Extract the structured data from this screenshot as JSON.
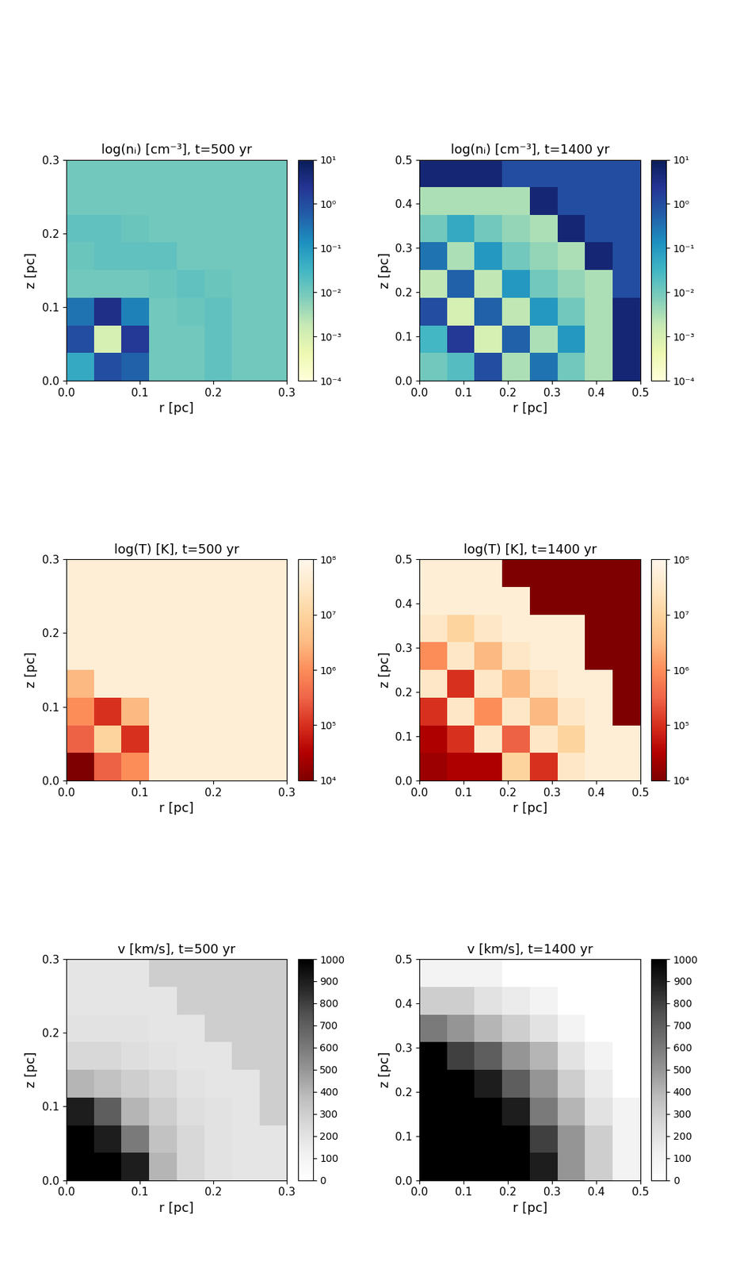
{
  "chart_data": [
    {
      "type": "heatmap",
      "title": "log(nᵢ) [cm⁻³], t=500 yr",
      "x_label": "r [pc]",
      "y_label": "z [pc]",
      "xlim": [
        0.0,
        0.3
      ],
      "ylim": [
        0.0,
        0.3
      ],
      "xticks": [
        0.0,
        0.1,
        0.2,
        0.3
      ],
      "yticks": [
        0.0,
        0.1,
        0.2,
        0.3
      ],
      "color": "YlGnBu",
      "cells": [
        [
          0.05,
          1.0,
          0.5,
          0.01,
          0.01,
          0.015,
          0.01,
          0.01
        ],
        [
          1.0,
          0.001,
          2.0,
          0.01,
          0.01,
          0.015,
          0.01,
          0.01
        ],
        [
          0.3,
          3.0,
          0.2,
          0.01,
          0.012,
          0.015,
          0.01,
          0.01
        ],
        [
          0.01,
          0.01,
          0.01,
          0.012,
          0.015,
          0.012,
          0.01,
          0.01
        ],
        [
          0.012,
          0.015,
          0.015,
          0.015,
          0.01,
          0.01,
          0.01,
          0.01
        ],
        [
          0.015,
          0.015,
          0.012,
          0.01,
          0.01,
          0.01,
          0.01,
          0.01
        ],
        [
          0.01,
          0.01,
          0.01,
          0.01,
          0.01,
          0.01,
          0.01,
          0.01
        ],
        [
          0.01,
          0.01,
          0.01,
          0.01,
          0.01,
          0.01,
          0.01,
          0.01
        ]
      ],
      "colorbar": {
        "log": true,
        "range": [
          0.0001,
          10
        ],
        "ticks": [
          {
            "value": 10,
            "label": "10¹"
          },
          {
            "value": 1,
            "label": "10⁰"
          },
          {
            "value": 0.1,
            "label": "10⁻¹"
          },
          {
            "value": 0.01,
            "label": "10⁻²"
          },
          {
            "value": 0.001,
            "label": "10⁻³"
          },
          {
            "value": 0.0001,
            "label": "10⁻⁴"
          }
        ]
      }
    },
    {
      "type": "heatmap",
      "title": "log(nᵢ) [cm⁻³], t=1400 yr",
      "x_label": "r [pc]",
      "y_label": "z [pc]",
      "xlim": [
        0.0,
        0.5
      ],
      "ylim": [
        0.0,
        0.5
      ],
      "xticks": [
        0.0,
        0.1,
        0.2,
        0.3,
        0.4,
        0.5
      ],
      "yticks": [
        0.0,
        0.1,
        0.2,
        0.3,
        0.4,
        0.5
      ],
      "color": "YlGnBu",
      "cells": [
        [
          0.01,
          0.02,
          1.0,
          0.003,
          0.3,
          0.01,
          0.003,
          5.0
        ],
        [
          0.03,
          2.0,
          0.001,
          0.5,
          0.003,
          0.1,
          0.003,
          5.0
        ],
        [
          1.0,
          0.001,
          0.5,
          0.002,
          0.1,
          0.01,
          0.003,
          5.0
        ],
        [
          0.002,
          0.5,
          0.002,
          0.1,
          0.01,
          0.005,
          0.003,
          1.0
        ],
        [
          0.3,
          0.003,
          0.1,
          0.01,
          0.005,
          0.003,
          5.0,
          1.0
        ],
        [
          0.01,
          0.05,
          0.01,
          0.005,
          0.003,
          5.0,
          1.0,
          1.0
        ],
        [
          0.003,
          0.003,
          0.003,
          0.003,
          5.0,
          1.0,
          1.0,
          1.0
        ],
        [
          5.0,
          5.0,
          5.0,
          1.0,
          1.0,
          1.0,
          1.0,
          1.0
        ]
      ],
      "colorbar": {
        "log": true,
        "range": [
          0.0001,
          10
        ],
        "ticks": [
          {
            "value": 10,
            "label": "10¹"
          },
          {
            "value": 1,
            "label": "10⁰"
          },
          {
            "value": 0.1,
            "label": "10⁻¹"
          },
          {
            "value": 0.01,
            "label": "10⁻²"
          },
          {
            "value": 0.001,
            "label": "10⁻³"
          },
          {
            "value": 0.0001,
            "label": "10⁻⁴"
          }
        ]
      }
    },
    {
      "type": "heatmap",
      "title": "log(T) [K], t=500 yr",
      "x_label": "r [pc]",
      "y_label": "z [pc]",
      "xlim": [
        0.0,
        0.3
      ],
      "ylim": [
        0.0,
        0.3
      ],
      "xticks": [
        0.0,
        0.1,
        0.2,
        0.3
      ],
      "yticks": [
        0.0,
        0.1,
        0.2,
        0.3
      ],
      "color": "OrRd_r",
      "cells": [
        [
          10000,
          300000,
          1000000,
          50000000,
          50000000,
          50000000,
          50000000,
          50000000
        ],
        [
          300000,
          10000000,
          100000,
          50000000,
          50000000,
          50000000,
          50000000,
          50000000
        ],
        [
          1000000,
          100000,
          3000000,
          50000000,
          50000000,
          50000000,
          50000000,
          50000000
        ],
        [
          3000000,
          50000000,
          50000000,
          50000000,
          50000000,
          50000000,
          50000000,
          50000000
        ],
        [
          50000000,
          50000000,
          50000000,
          50000000,
          50000000,
          50000000,
          50000000,
          50000000
        ],
        [
          50000000,
          50000000,
          50000000,
          50000000,
          50000000,
          50000000,
          50000000,
          50000000
        ],
        [
          50000000,
          50000000,
          50000000,
          50000000,
          50000000,
          50000000,
          50000000,
          50000000
        ],
        [
          50000000,
          50000000,
          50000000,
          50000000,
          50000000,
          50000000,
          50000000,
          50000000
        ]
      ],
      "colorbar": {
        "log": true,
        "range": [
          10000,
          100000000
        ],
        "ticks": [
          {
            "value": 100000000,
            "label": "10⁸"
          },
          {
            "value": 10000000,
            "label": "10⁷"
          },
          {
            "value": 1000000,
            "label": "10⁶"
          },
          {
            "value": 100000,
            "label": "10⁵"
          },
          {
            "value": 10000,
            "label": "10⁴"
          }
        ]
      }
    },
    {
      "type": "heatmap",
      "title": "log(T) [K], t=1400 yr",
      "x_label": "r [pc]",
      "y_label": "z [pc]",
      "xlim": [
        0.0,
        0.5
      ],
      "ylim": [
        0.0,
        0.5
      ],
      "xticks": [
        0.0,
        0.1,
        0.2,
        0.3,
        0.4,
        0.5
      ],
      "yticks": [
        0.0,
        0.1,
        0.2,
        0.3,
        0.4,
        0.5
      ],
      "color": "OrRd_r",
      "cells": [
        [
          20000,
          30000,
          30000,
          10000000,
          100000,
          30000000,
          50000000,
          50000000
        ],
        [
          30000,
          100000,
          30000000,
          300000,
          30000000,
          10000000,
          50000000,
          50000000
        ],
        [
          100000,
          30000000,
          1000000,
          30000000,
          3000000,
          30000000,
          50000000,
          10000
        ],
        [
          30000000,
          100000,
          30000000,
          3000000,
          30000000,
          50000000,
          50000000,
          10000
        ],
        [
          1000000,
          30000000,
          3000000,
          30000000,
          50000000,
          50000000,
          10000,
          10000
        ],
        [
          30000000,
          10000000,
          30000000,
          50000000,
          50000000,
          50000000,
          10000,
          10000
        ],
        [
          50000000,
          50000000,
          50000000,
          50000000,
          10000,
          10000,
          10000,
          10000
        ],
        [
          50000000,
          50000000,
          50000000,
          10000,
          10000,
          10000,
          10000,
          10000
        ]
      ],
      "colorbar": {
        "log": true,
        "range": [
          10000,
          100000000
        ],
        "ticks": [
          {
            "value": 100000000,
            "label": "10⁸"
          },
          {
            "value": 10000000,
            "label": "10⁷"
          },
          {
            "value": 1000000,
            "label": "10⁶"
          },
          {
            "value": 100000,
            "label": "10⁵"
          },
          {
            "value": 10000,
            "label": "10⁴"
          }
        ]
      }
    },
    {
      "type": "heatmap",
      "title": "v [km/s], t=500 yr",
      "x_label": "r [pc]",
      "y_label": "z [pc]",
      "xlim": [
        0.0,
        0.3
      ],
      "ylim": [
        0.0,
        0.3
      ],
      "xticks": [
        0.0,
        0.1,
        0.2,
        0.3
      ],
      "yticks": [
        0.0,
        0.1,
        0.2,
        0.3
      ],
      "color": "Greys",
      "cells": [
        [
          1000,
          1000,
          900,
          400,
          250,
          200,
          180,
          180
        ],
        [
          1000,
          900,
          600,
          350,
          250,
          200,
          180,
          180
        ],
        [
          900,
          700,
          400,
          300,
          220,
          200,
          180,
          300
        ],
        [
          400,
          350,
          300,
          250,
          200,
          180,
          180,
          300
        ],
        [
          250,
          250,
          220,
          200,
          180,
          180,
          300,
          300
        ],
        [
          200,
          200,
          200,
          180,
          180,
          300,
          300,
          300
        ],
        [
          180,
          180,
          180,
          180,
          300,
          300,
          300,
          300
        ],
        [
          180,
          180,
          180,
          300,
          300,
          300,
          300,
          300
        ]
      ],
      "colorbar": {
        "log": false,
        "range": [
          0,
          1000
        ],
        "ticks": [
          0,
          100,
          200,
          300,
          400,
          500,
          600,
          700,
          800,
          900,
          1000
        ]
      }
    },
    {
      "type": "heatmap",
      "title": "v [km/s], t=1400 yr",
      "x_label": "r [pc]",
      "y_label": "z [pc]",
      "xlim": [
        0.0,
        0.5
      ],
      "ylim": [
        0.0,
        0.5
      ],
      "xticks": [
        0.0,
        0.1,
        0.2,
        0.3,
        0.4,
        0.5
      ],
      "yticks": [
        0.0,
        0.1,
        0.2,
        0.3,
        0.4,
        0.5
      ],
      "color": "Greys",
      "cells": [
        [
          1000,
          1000,
          1000,
          1000,
          900,
          500,
          300,
          100
        ],
        [
          1000,
          1000,
          1000,
          1000,
          800,
          500,
          300,
          100
        ],
        [
          1000,
          1000,
          1000,
          900,
          600,
          400,
          200,
          100
        ],
        [
          1000,
          1000,
          900,
          700,
          500,
          300,
          150,
          0
        ],
        [
          1000,
          800,
          700,
          500,
          400,
          200,
          100,
          0
        ],
        [
          600,
          500,
          400,
          300,
          200,
          100,
          0,
          0
        ],
        [
          300,
          300,
          200,
          150,
          100,
          0,
          0,
          0
        ],
        [
          100,
          100,
          100,
          0,
          0,
          0,
          0,
          0
        ]
      ],
      "colorbar": {
        "log": false,
        "range": [
          0,
          1000
        ],
        "ticks": [
          0,
          100,
          200,
          300,
          400,
          500,
          600,
          700,
          800,
          900,
          1000
        ]
      }
    }
  ]
}
